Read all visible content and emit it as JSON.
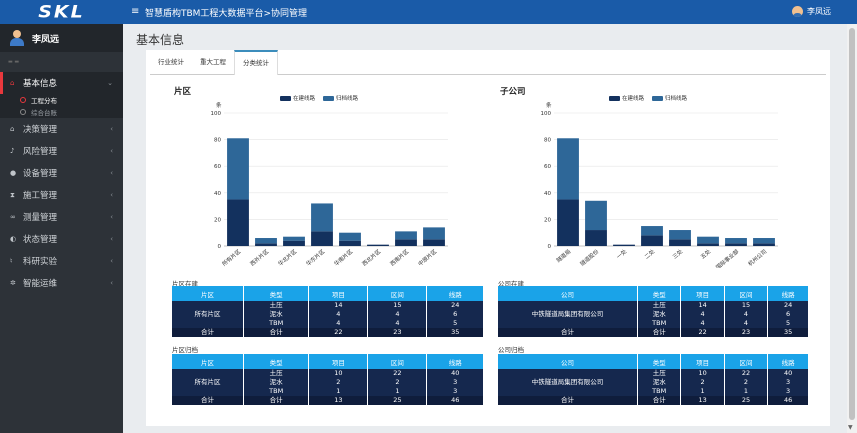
{
  "header": {
    "logo": "SKL",
    "title": "智慧盾构TBM工程大数据平台>协同管理",
    "user": "李凤远"
  },
  "sidebar": {
    "user_name": "李凤远",
    "items": [
      {
        "label": "基本信息",
        "icon": "graduation-cap-icon",
        "active": true
      },
      {
        "label": "决策管理",
        "icon": "graduation-cap-icon"
      },
      {
        "label": "风险管理",
        "icon": "bell-icon"
      },
      {
        "label": "设备管理",
        "icon": "circle-icon"
      },
      {
        "label": "施工管理",
        "icon": "hourglass-icon"
      },
      {
        "label": "测量管理",
        "icon": "binoculars-icon"
      },
      {
        "label": "状态管理",
        "icon": "dashboard-icon"
      },
      {
        "label": "科研实验",
        "icon": "flask-icon"
      },
      {
        "label": "智能运维",
        "icon": "gears-icon"
      }
    ],
    "sub_items": [
      {
        "label": "工程分布",
        "active": true
      },
      {
        "label": "综合台账"
      }
    ]
  },
  "page": {
    "title": "基本信息"
  },
  "tabs": [
    "行业统计",
    "重大工程",
    "分类统计"
  ],
  "active_tab": 2,
  "colors": {
    "in_progress": "#13315e",
    "archived": "#2e6798",
    "accent": "#1aa3e8"
  },
  "legend": {
    "in_progress": "在建线路",
    "archived": "归档线路"
  },
  "chart_data": [
    {
      "type": "bar",
      "title": "片区",
      "ylabel": "条",
      "ylim": [
        0,
        100
      ],
      "yticks": [
        "0",
        "20",
        "40",
        "60",
        "80",
        "100"
      ],
      "categories": [
        "所有片区",
        "西外片区",
        "华北片区",
        "华东片区",
        "华南片区",
        "西北片区",
        "西南片区",
        "中原片区"
      ],
      "series": [
        {
          "name": "在建线路",
          "values": [
            35,
            2,
            4,
            11,
            4,
            1,
            5,
            5
          ]
        },
        {
          "name": "归档线路",
          "values": [
            46,
            4,
            3,
            21,
            6,
            0,
            6,
            9
          ]
        }
      ]
    },
    {
      "type": "bar",
      "title": "子公司",
      "ylabel": "条",
      "ylim": [
        0,
        100
      ],
      "yticks": [
        "0",
        "20",
        "40",
        "60",
        "80",
        "100"
      ],
      "categories": [
        "隧道局",
        "隧道股份",
        "一处",
        "二处",
        "三处",
        "五处",
        "国际事业部",
        "杭州公司"
      ],
      "series": [
        {
          "name": "在建线路",
          "values": [
            35,
            12,
            1,
            8,
            5,
            2,
            2,
            2
          ]
        },
        {
          "name": "归档线路",
          "values": [
            46,
            22,
            0,
            7,
            7,
            5,
            4,
            4
          ]
        }
      ]
    }
  ],
  "tables": {
    "region_active": {
      "label": "片区在建",
      "headers": [
        "片区",
        "类型",
        "项目",
        "区间",
        "线路"
      ],
      "group": "所有片区",
      "rows": [
        [
          "土压",
          "14",
          "15",
          "24"
        ],
        [
          "泥水",
          "4",
          "4",
          "6"
        ],
        [
          "TBM",
          "4",
          "4",
          "5"
        ]
      ],
      "sum": [
        "合计",
        "合计",
        "22",
        "23",
        "35"
      ]
    },
    "company_active": {
      "label": "公司在建",
      "headers": [
        "公司",
        "类型",
        "项目",
        "区间",
        "线路"
      ],
      "group": "中铁隧道局集团有限公司",
      "rows": [
        [
          "土压",
          "14",
          "15",
          "24"
        ],
        [
          "泥水",
          "4",
          "4",
          "6"
        ],
        [
          "TBM",
          "4",
          "4",
          "5"
        ]
      ],
      "sum": [
        "合计",
        "合计",
        "22",
        "23",
        "35"
      ]
    },
    "region_archived": {
      "label": "片区归档",
      "headers": [
        "片区",
        "类型",
        "项目",
        "区间",
        "线路"
      ],
      "group": "所有片区",
      "rows": [
        [
          "土压",
          "10",
          "22",
          "40"
        ],
        [
          "泥水",
          "2",
          "2",
          "3"
        ],
        [
          "TBM",
          "1",
          "1",
          "3"
        ]
      ],
      "sum": [
        "合计",
        "合计",
        "13",
        "25",
        "46"
      ]
    },
    "company_archived": {
      "label": "公司归档",
      "headers": [
        "公司",
        "类型",
        "项目",
        "区间",
        "线路"
      ],
      "group": "中铁隧道局集团有限公司",
      "rows": [
        [
          "土压",
          "10",
          "22",
          "40"
        ],
        [
          "泥水",
          "2",
          "2",
          "3"
        ],
        [
          "TBM",
          "1",
          "1",
          "3"
        ]
      ],
      "sum": [
        "合计",
        "合计",
        "13",
        "25",
        "46"
      ]
    }
  }
}
